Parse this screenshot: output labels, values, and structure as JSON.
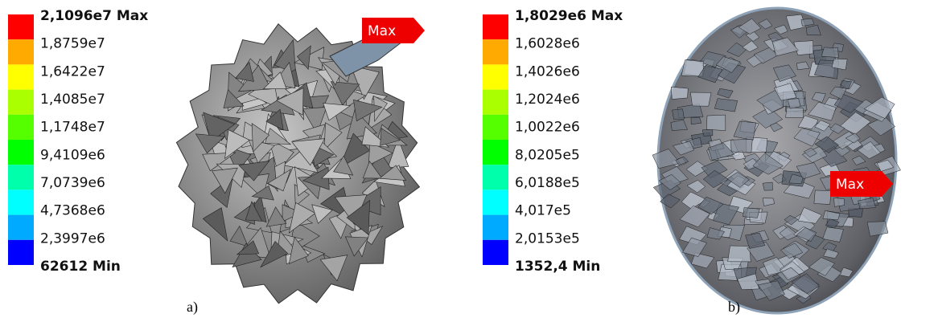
{
  "panels": [
    {
      "legend": {
        "labels": [
          "2,1096e7 Max",
          "1,8759e7",
          "1,6422e7",
          "1,4085e7",
          "1,1748e7",
          "9,4109e6",
          "7,0739e6",
          "4,7368e6",
          "2,3997e6",
          "62612 Min"
        ]
      },
      "max_label": "Max",
      "caption": "a)"
    },
    {
      "legend": {
        "labels": [
          "1,8029e6 Max",
          "1,6028e6",
          "1,4026e6",
          "1,2024e6",
          "1,0022e6",
          "8,0205e5",
          "6,0188e5",
          "4,017e5",
          "2,0153e5",
          "1352,4 Min"
        ]
      },
      "max_label": "Max",
      "caption": "b)"
    }
  ]
}
